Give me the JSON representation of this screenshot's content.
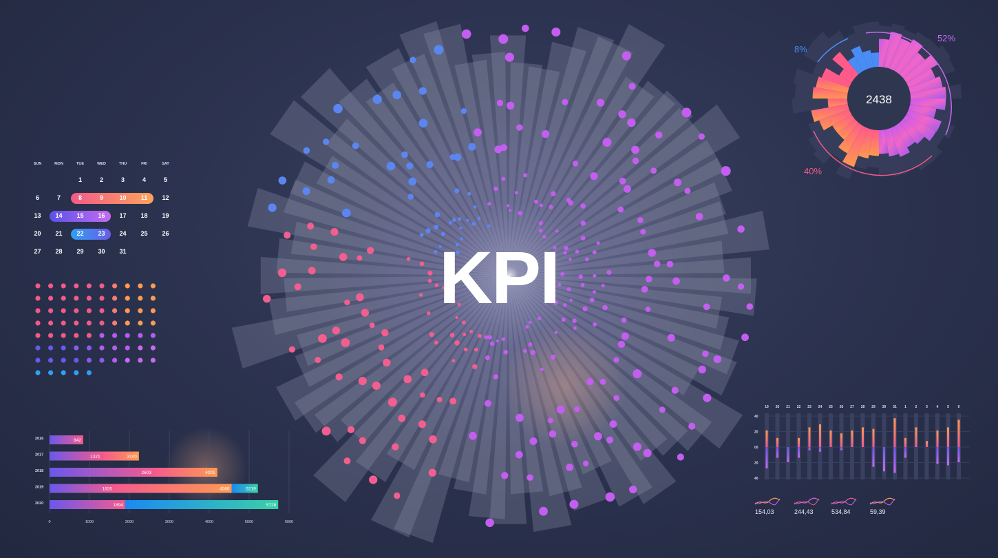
{
  "title": "KPI",
  "radial": {
    "value": "2438",
    "pct_a": "8%",
    "pct_b": "52%",
    "pct_c": "40%",
    "colors": {
      "blue": "#4a8cf5",
      "purple": "#b55cf0",
      "pink": "#f35a88",
      "orange": "#ff9a4d"
    }
  },
  "calendar": {
    "days": [
      "SUN",
      "MON",
      "TUE",
      "WED",
      "THU",
      "FRI",
      "SAT"
    ],
    "weeks": [
      [
        "",
        "",
        "1",
        "2",
        "3",
        "4",
        "5"
      ],
      [
        "6",
        "7",
        "8",
        "9",
        "10",
        "11",
        "12"
      ],
      [
        "13",
        "14",
        "15",
        "16",
        "17",
        "18",
        "19"
      ],
      [
        "20",
        "21",
        "22",
        "23",
        "24",
        "25",
        "26"
      ],
      [
        "27",
        "28",
        "29",
        "30",
        "31",
        "",
        ""
      ]
    ],
    "highlights": [
      {
        "row": 1,
        "from": 2,
        "to": 5,
        "colors": [
          "#f35a88",
          "#ffa35a"
        ]
      },
      {
        "row": 2,
        "from": 1,
        "to": 3,
        "colors": [
          "#5a52e8",
          "#c66af2"
        ]
      },
      {
        "row": 3,
        "from": 2,
        "to": 3,
        "colors": [
          "#2fa0f2",
          "#6a5ce8"
        ]
      }
    ]
  },
  "chart_data": [
    {
      "type": "bar",
      "categories": [
        "2016",
        "2017",
        "2018",
        "2019",
        "2020"
      ],
      "series": [
        {
          "values": [
            842,
            1321,
            2603,
            1620,
            1894
          ],
          "colors": [
            "#6a58ec",
            "#f45a8e"
          ]
        },
        {
          "values": [
            0,
            2240,
            4201,
            4560,
            0
          ],
          "colors": [
            "#f45a8e",
            "#ff9a52"
          ]
        },
        {
          "values": [
            0,
            0,
            0,
            5219,
            5728
          ],
          "colors": [
            "#1a8af2",
            "#3ad0a8"
          ]
        }
      ],
      "labels": [
        [
          "842"
        ],
        [
          "1321",
          "2240"
        ],
        [
          "2603",
          "4201"
        ],
        [
          "1620",
          "4560",
          "5219"
        ],
        [
          "1894",
          "5728"
        ]
      ],
      "xticks": [
        "0",
        "1000",
        "2000",
        "3000",
        "4000",
        "5000",
        "6000"
      ],
      "xlim": [
        0,
        6000
      ]
    },
    {
      "type": "bar",
      "categories": [
        "19",
        "20",
        "21",
        "22",
        "23",
        "24",
        "25",
        "26",
        "27",
        "28",
        "29",
        "30",
        "31",
        "1",
        "2",
        "3",
        "4",
        "5",
        "6"
      ],
      "yticks": [
        "40",
        "20",
        "00",
        "20",
        "40"
      ],
      "up": [
        22,
        12,
        0,
        12,
        26,
        30,
        22,
        18,
        22,
        26,
        24,
        0,
        38,
        12,
        26,
        8,
        22,
        26,
        36
      ],
      "down": [
        28,
        14,
        20,
        14,
        4,
        6,
        0,
        4,
        0,
        0,
        26,
        32,
        34,
        14,
        0,
        0,
        22,
        24,
        20
      ]
    }
  ],
  "sparklines": [
    "154,03",
    "244,43",
    "534,84",
    "59,39"
  ]
}
